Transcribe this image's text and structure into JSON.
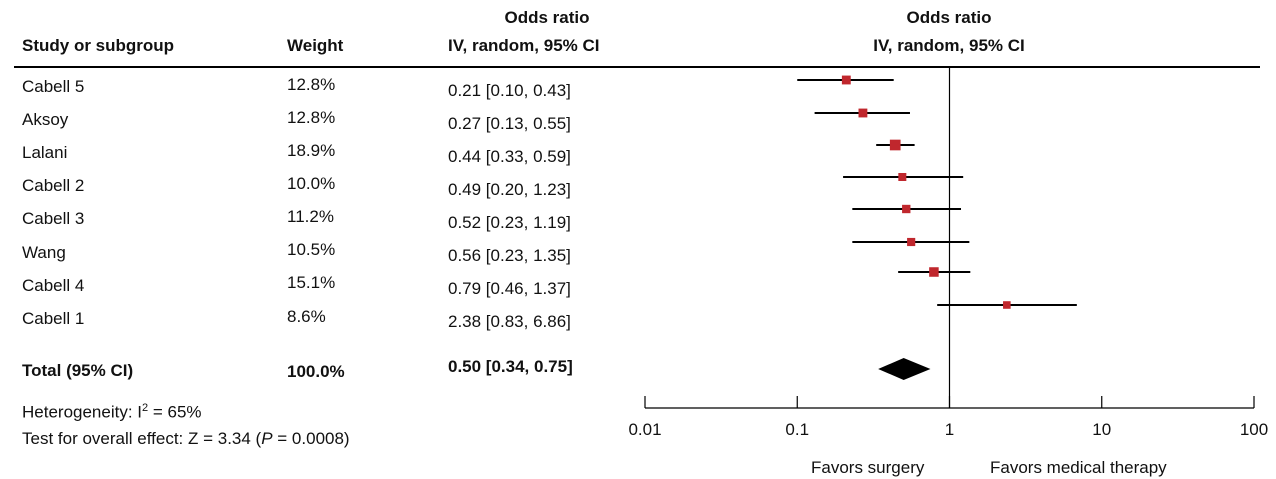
{
  "header": {
    "study_label": "Study or subgroup",
    "weight_label": "Weight",
    "or_title_1": "Odds  ratio",
    "or_sub_1": "IV, random, 95% CI",
    "or_title_2": "Odds  ratio",
    "or_sub_2": "IV, random, 95% CI"
  },
  "studies": [
    {
      "name": "Cabell 5",
      "weight": "12.8%",
      "ci_text": "0.21 [0.10, 0.43]"
    },
    {
      "name": "Aksoy",
      "weight": "12.8%",
      "ci_text": "0.27 [0.13, 0.55]"
    },
    {
      "name": "Lalani",
      "weight": "18.9%",
      "ci_text": "0.44 [0.33, 0.59]"
    },
    {
      "name": "Cabell 2",
      "weight": "10.0%",
      "ci_text": "0.49 [0.20, 1.23]"
    },
    {
      "name": "Cabell 3",
      "weight": "11.2%",
      "ci_text": "0.52 [0.23, 1.19]"
    },
    {
      "name": "Wang",
      "weight": "10.5%",
      "ci_text": "0.56 [0.23, 1.35]"
    },
    {
      "name": "Cabell 4",
      "weight": "15.1%",
      "ci_text": "0.79 [0.46, 1.37]"
    },
    {
      "name": "Cabell 1",
      "weight": "8.6%",
      "ci_text": "2.38 [0.83, 6.86]"
    }
  ],
  "total": {
    "name": "Total (95% CI)",
    "weight": "100.0%",
    "ci_text": "0.50 [0.34, 0.75]"
  },
  "footer": {
    "heterogeneity_prefix": "Heterogeneity: I",
    "heterogeneity_sup": "2",
    "heterogeneity_suffix": " = 65%",
    "overall_prefix": "Test for overall effect: Z = 3.34 (",
    "overall_p": "P",
    "overall_suffix": " = 0.0008)",
    "favors_left": "Favors surgery",
    "favors_right": "Favors medical therapy"
  },
  "chart_data": {
    "type": "forest",
    "scale": "log",
    "xlim": [
      0.01,
      100
    ],
    "reference_line": 1,
    "x_ticks": [
      0.01,
      0.1,
      1,
      10,
      100
    ],
    "x_tick_labels": [
      "0.01",
      "0.1",
      "1",
      "10",
      "100"
    ],
    "marker_color": "#c0272d",
    "series": [
      {
        "name": "Cabell 5",
        "or": 0.21,
        "lower": 0.1,
        "upper": 0.43,
        "weight": 12.8
      },
      {
        "name": "Aksoy",
        "or": 0.27,
        "lower": 0.13,
        "upper": 0.55,
        "weight": 12.8
      },
      {
        "name": "Lalani",
        "or": 0.44,
        "lower": 0.33,
        "upper": 0.59,
        "weight": 18.9
      },
      {
        "name": "Cabell 2",
        "or": 0.49,
        "lower": 0.2,
        "upper": 1.23,
        "weight": 10.0
      },
      {
        "name": "Cabell 3",
        "or": 0.52,
        "lower": 0.23,
        "upper": 1.19,
        "weight": 11.2
      },
      {
        "name": "Wang",
        "or": 0.56,
        "lower": 0.23,
        "upper": 1.35,
        "weight": 10.5
      },
      {
        "name": "Cabell 4",
        "or": 0.79,
        "lower": 0.46,
        "upper": 1.37,
        "weight": 15.1
      },
      {
        "name": "Cabell 1",
        "or": 2.38,
        "lower": 0.83,
        "upper": 6.86,
        "weight": 8.6
      }
    ],
    "pooled": {
      "name": "Total (95% CI)",
      "or": 0.5,
      "lower": 0.34,
      "upper": 0.75
    }
  }
}
